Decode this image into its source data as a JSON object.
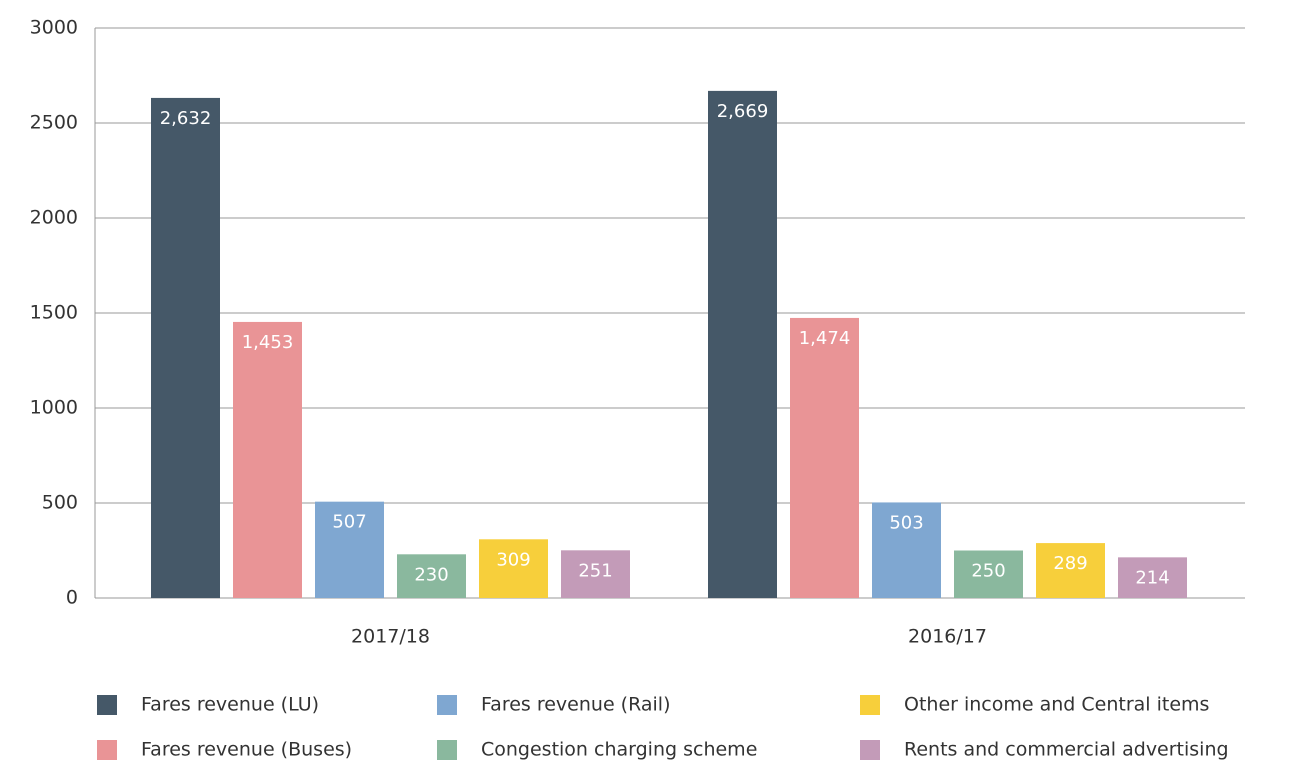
{
  "chart_data": {
    "type": "bar",
    "categories": [
      "2017/18",
      "2016/17"
    ],
    "series": [
      {
        "name": "Fares revenue (LU)",
        "color": "#455868",
        "values": [
          2632,
          2669
        ],
        "value_labels": [
          "2,632",
          "2,669"
        ]
      },
      {
        "name": "Fares revenue (Buses)",
        "color": "#e99496",
        "values": [
          1453,
          1474
        ],
        "value_labels": [
          "1,453",
          "1,474"
        ]
      },
      {
        "name": "Fares revenue (Rail)",
        "color": "#7fa7d1",
        "values": [
          507,
          503
        ]
      },
      {
        "name": "Congestion charging scheme",
        "color": "#8ab89e",
        "values": [
          230,
          250
        ]
      },
      {
        "name": "Other income and Central items",
        "color": "#f7cf3b",
        "values": [
          309,
          289
        ]
      },
      {
        "name": "Rents and commercial advertising",
        "color": "#c39bb8",
        "values": [
          251,
          214
        ]
      }
    ],
    "ylim": [
      0,
      3000
    ],
    "yticks": [
      0,
      500,
      1000,
      1500,
      2000,
      2500,
      3000
    ],
    "grid": true
  }
}
